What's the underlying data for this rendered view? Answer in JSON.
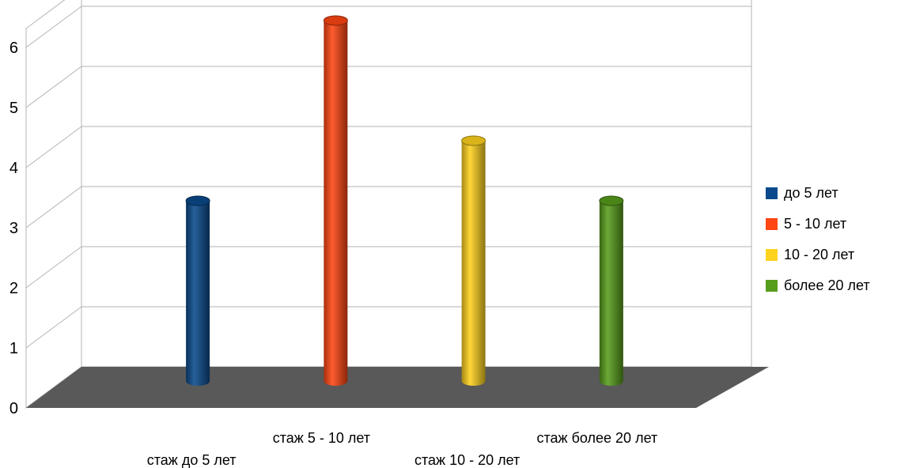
{
  "chart_data": {
    "type": "bar",
    "title": "",
    "xlabel": "",
    "ylabel": "",
    "categories": [
      "стаж до 5 лет",
      "стаж 5 - 10 лет",
      "стаж 10 - 20 лет",
      "стаж более 20 лет"
    ],
    "values": [
      3,
      6,
      4,
      3
    ],
    "ylim": [
      0,
      6
    ],
    "yticks": [
      "0",
      "1",
      "2",
      "3",
      "4",
      "5",
      "6"
    ],
    "grid": true,
    "three_d": true,
    "legend_position": "right",
    "series": [
      {
        "name": "до 5 лет",
        "value": 3,
        "color": "#0a4a8c"
      },
      {
        "name": "5 - 10 лет",
        "value": 6,
        "color": "#ff4613"
      },
      {
        "name": "10 - 20 лет",
        "value": 4,
        "color": "#ffd21e"
      },
      {
        "name": "более 20 лет",
        "value": 3,
        "color": "#579d1c"
      }
    ],
    "colors": {
      "floor": "#595959",
      "gridline": "#b3b3b3",
      "wall": "#ffffff"
    }
  }
}
